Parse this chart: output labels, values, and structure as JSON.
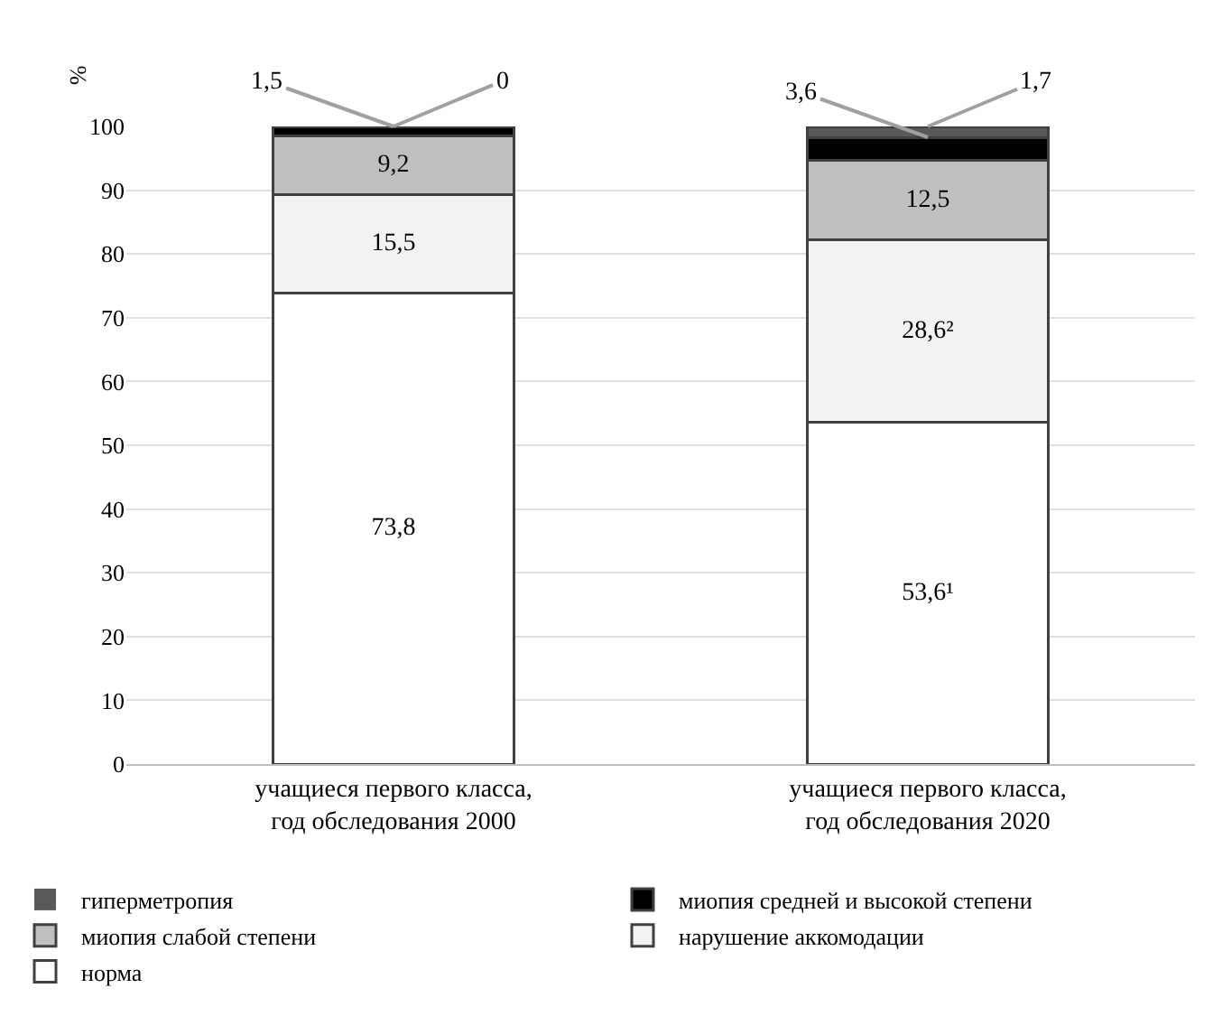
{
  "chart_data": {
    "type": "bar",
    "stacked": true,
    "ylabel": "%",
    "categories": [
      "учащиеся первого класса, год обследования 2000",
      "учащиеся первого класса, год обследования 2020"
    ],
    "series": [
      {
        "name": "норма",
        "color": "#ffffff",
        "values": [
          73.8,
          53.6
        ],
        "value_labels": [
          "73,8",
          "53,6¹"
        ]
      },
      {
        "name": "нарушение аккомодации",
        "color": "#f2f2f2",
        "values": [
          15.5,
          28.6
        ],
        "value_labels": [
          "15,5",
          "28,6²"
        ]
      },
      {
        "name": "миопия слабой степени",
        "color": "#bfbfbf",
        "values": [
          9.2,
          12.5
        ],
        "value_labels": [
          "9,2",
          "12,5"
        ]
      },
      {
        "name": "миопия средней и высокой степени",
        "color": "#000000",
        "values": [
          1.5,
          3.6
        ],
        "value_labels": [
          null,
          null
        ]
      },
      {
        "name": "гиперметропия",
        "color": "#595959",
        "values": [
          0,
          1.7
        ],
        "value_labels": [
          null,
          null
        ]
      }
    ],
    "annotations": [
      {
        "text": "1,5",
        "x": "учащиеся первого класса, год обследования 2000",
        "y": 100
      },
      {
        "text": "0",
        "x": "учащиеся первого класса, год обследования 2000",
        "y": 100
      },
      {
        "text": "3,6",
        "x": "учащиеся первого класса, год обследования 2020",
        "y": 98.3
      },
      {
        "text": "1,7",
        "x": "учащиеся первого класса, год обследования 2020",
        "y": 100
      }
    ],
    "ylim": [
      0,
      100
    ],
    "yticks": [
      0,
      10,
      20,
      30,
      40,
      50,
      60,
      70,
      80,
      90,
      100
    ],
    "grid": "y",
    "legend": "bottom"
  }
}
